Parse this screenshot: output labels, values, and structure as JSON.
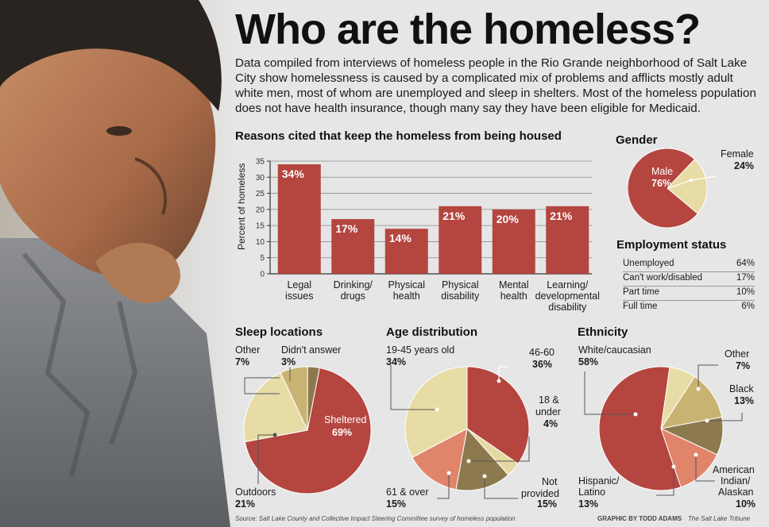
{
  "title": "Who are the homeless?",
  "intro": "Data compiled from interviews of homeless people in the Rio Grande neighborhood of Salt Lake City show homelessness is caused by a complicated mix of problems and afflicts mostly adult white men, most of whom are unemployed and sleep in shelters. Most of the homeless population does not have health insurance, though many say they have been eligible for Medicaid.",
  "colors": {
    "red": "#b5453f",
    "cream": "#e8dca6",
    "salmon": "#e0846a",
    "olive": "#8c7a4e",
    "tan": "#c8b372",
    "beige": "#e5d9a3"
  },
  "chart_data": [
    {
      "type": "bar",
      "title": "Reasons cited that keep the homeless from being housed",
      "ylabel": "Percent of homeless",
      "ylim": [
        0,
        35
      ],
      "yticks": [
        "0",
        "5",
        "10",
        "15",
        "20",
        "25",
        "30",
        "35"
      ],
      "categories": [
        "Legal issues",
        "Drinking/ drugs",
        "Physical health",
        "Physical disability",
        "Mental health",
        "Learning/ developmental disability"
      ],
      "values": [
        34,
        17,
        14,
        21,
        20,
        21
      ],
      "value_labels": [
        "34%",
        "17%",
        "14%",
        "21%",
        "20%",
        "21%"
      ],
      "category_lines": [
        [
          "Legal",
          "issues"
        ],
        [
          "Drinking/",
          "drugs"
        ],
        [
          "Physical",
          "health"
        ],
        [
          "Physical",
          "disability"
        ],
        [
          "Mental",
          "health"
        ],
        [
          "Learning/",
          "developmental",
          "disability"
        ]
      ]
    },
    {
      "type": "pie",
      "title": "Gender",
      "slices": [
        {
          "label": "Male",
          "value": 76,
          "display": "76%"
        },
        {
          "label": "Female",
          "value": 24,
          "display": "24%"
        }
      ]
    },
    {
      "type": "table",
      "title": "Employment status",
      "rows": [
        {
          "label": "Unemployed",
          "value": "64%"
        },
        {
          "label": "Can't work/disabled",
          "value": "17%"
        },
        {
          "label": "Part time",
          "value": "10%"
        },
        {
          "label": "Full time",
          "value": "6%"
        }
      ]
    },
    {
      "type": "pie",
      "title": "Sleep locations",
      "slices": [
        {
          "label": "Sheltered",
          "value": 69,
          "display": "69%"
        },
        {
          "label": "Outdoors",
          "value": 21,
          "display": "21%"
        },
        {
          "label": "Other",
          "value": 7,
          "display": "7%"
        },
        {
          "label": "Didn't answer",
          "value": 3,
          "display": "3%"
        }
      ]
    },
    {
      "type": "pie",
      "title": "Age distribution",
      "slices": [
        {
          "label": "46-60",
          "value": 36,
          "display": "36%"
        },
        {
          "label": "18 & under",
          "value": 4,
          "display": "4%"
        },
        {
          "label": "Not provided",
          "value": 15,
          "display": "15%"
        },
        {
          "label": "61 & over",
          "value": 15,
          "display": "15%"
        },
        {
          "label": "19-45 years old",
          "value": 34,
          "display": "34%"
        }
      ],
      "label_lines": {
        "18 & under": [
          "18 &",
          "under"
        ],
        "Not provided": [
          "Not",
          "provided"
        ]
      }
    },
    {
      "type": "pie",
      "title": "Ethnicity",
      "slices": [
        {
          "label": "Other",
          "value": 7,
          "display": "7%"
        },
        {
          "label": "Black",
          "value": 13,
          "display": "13%"
        },
        {
          "label": "American Indian/ Alaskan",
          "value": 10,
          "display": "10%"
        },
        {
          "label": "Hispanic/ Latino",
          "value": 13,
          "display": "13%"
        },
        {
          "label": "White/caucasian",
          "value": 58,
          "display": "58%"
        }
      ],
      "label_lines": {
        "American Indian/ Alaskan": [
          "American",
          "Indian/",
          "Alaskan"
        ],
        "Hispanic/ Latino": [
          "Hispanic/",
          "Latino"
        ]
      }
    }
  ],
  "source": "Source: Salt Lake County and Collective Impact Steering Committee survey of homeless population",
  "credit": "GRAPHIC BY TODD ADAMS",
  "publisher": "The Salt Lake Tribune"
}
